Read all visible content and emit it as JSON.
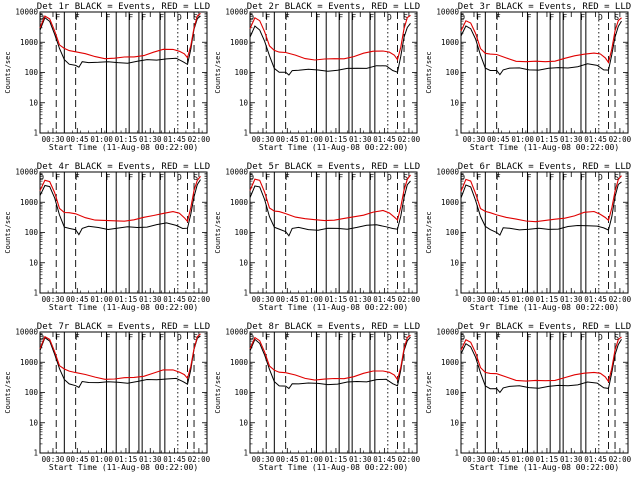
{
  "figure": {
    "panels": [
      {
        "title": "Det 1r BLACK = Events, RED = LLD"
      },
      {
        "title": "Det 2r BLACK = Events, RED = LLD"
      },
      {
        "title": "Det 3r BLACK = Events, RED = LLD"
      },
      {
        "title": "Det 4r BLACK = Events, RED = LLD"
      },
      {
        "title": "Det 5r BLACK = Events, RED = LLD"
      },
      {
        "title": "Det 6r BLACK = Events, RED = LLD"
      },
      {
        "title": "Det 7r BLACK = Events, RED = LLD"
      },
      {
        "title": "Det 8r BLACK = Events, RED = LLD"
      },
      {
        "title": "Det 9r BLACK = Events, RED = LLD"
      }
    ]
  },
  "chart_data": {
    "type": "line",
    "layout": "3x3 grid",
    "ylabel": "Counts/sec",
    "xlabel": "Start Time (11-Aug-08 00:22:00)",
    "yscale": "log",
    "ylim": [
      1,
      10000
    ],
    "yticks": [
      1,
      10,
      100,
      1000,
      10000
    ],
    "ytick_labels": [
      "1",
      "10",
      "100",
      "1000",
      "10000"
    ],
    "xlim": [
      "00:22",
      "02:05"
    ],
    "xticks": [
      "00:30",
      "00:45",
      "01:00",
      "01:15",
      "01:30",
      "01:45",
      "02:00"
    ],
    "series_colors": {
      "events": "#000000",
      "lld": "#e00000"
    },
    "vertical_markers": {
      "dashed": [
        "00:32",
        "00:44",
        "01:53",
        "01:57"
      ],
      "solid": [
        "00:37",
        "01:03",
        "01:09",
        "01:17",
        "01:23",
        "01:25",
        "01:36",
        "01:39"
      ],
      "dotted": [
        "01:47"
      ]
    },
    "marker_labels": [
      "D",
      "F",
      "F",
      "F",
      "F",
      "F",
      "F",
      "D",
      "S"
    ],
    "lld_template": {
      "x": [
        "00:22",
        "00:25",
        "00:28",
        "00:31",
        "00:34",
        "00:37",
        "00:40",
        "00:44",
        "00:50",
        "00:56",
        "01:02",
        "01:08",
        "01:14",
        "01:20",
        "01:26",
        "01:32",
        "01:38",
        "01:44",
        "01:48",
        "01:51",
        "01:53",
        "01:55",
        "01:57",
        "01:59",
        "02:01"
      ],
      "y": [
        3000,
        7000,
        6000,
        2500,
        800,
        600,
        550,
        500,
        400,
        330,
        300,
        300,
        310,
        330,
        380,
        460,
        560,
        600,
        520,
        400,
        300,
        800,
        3000,
        7000,
        9000
      ]
    },
    "events_template": {
      "x": [
        "00:22",
        "00:25",
        "00:28",
        "00:31",
        "00:34",
        "00:37",
        "00:40",
        "00:44",
        "00:46",
        "00:48",
        "00:52",
        "00:58",
        "01:04",
        "01:10",
        "01:16",
        "01:22",
        "01:28",
        "01:34",
        "01:40",
        "01:46",
        "01:50",
        "01:53",
        "01:55",
        "01:57",
        "01:59",
        "02:01"
      ],
      "y": [
        2500,
        6000,
        5000,
        2000,
        600,
        250,
        200,
        180,
        140,
        220,
        230,
        220,
        210,
        215,
        220,
        230,
        250,
        270,
        300,
        280,
        220,
        200,
        600,
        2500,
        6000,
        8000
      ]
    },
    "panel_scale": [
      1.0,
      0.9,
      0.75,
      0.8,
      0.85,
      0.8,
      0.95,
      0.9,
      0.8
    ],
    "panel_event_scale": [
      1.0,
      0.55,
      0.6,
      0.65,
      0.6,
      0.6,
      1.0,
      0.9,
      0.7
    ]
  }
}
